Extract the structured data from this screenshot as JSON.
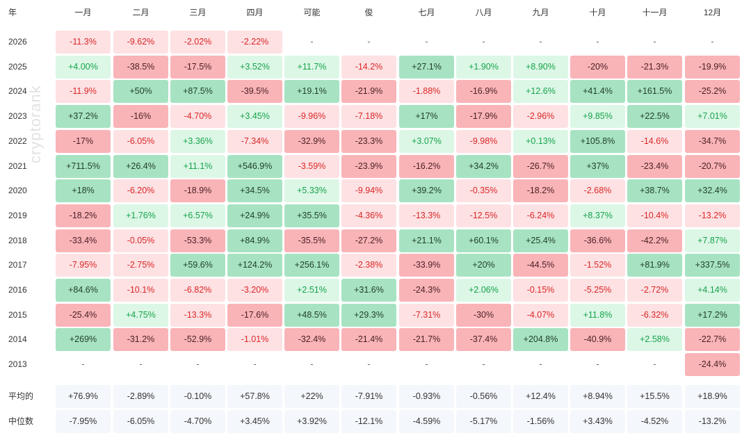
{
  "chart_data": {
    "type": "heatmap",
    "corner_label": "年",
    "months": [
      "一月",
      "二月",
      "三月",
      "四月",
      "可能",
      "俊",
      "七月",
      "八月",
      "九月",
      "十月",
      "十一月",
      "12月"
    ],
    "years": [
      "2026",
      "2025",
      "2024",
      "2023",
      "2022",
      "2021",
      "2020",
      "2019",
      "2018",
      "2017",
      "2016",
      "2015",
      "2014",
      "2013"
    ],
    "values": [
      [
        "-11.3%",
        "-9.62%",
        "-2.02%",
        "-2.22%",
        "-",
        "-",
        "-",
        "-",
        "-",
        "-",
        "-",
        "-"
      ],
      [
        "+4.00%",
        "-38.5%",
        "-17.5%",
        "+3.52%",
        "+11.7%",
        "-14.2%",
        "+27.1%",
        "+1.90%",
        "+8.90%",
        "-20%",
        "-21.3%",
        "-19.9%"
      ],
      [
        "-11.9%",
        "+50%",
        "+87.5%",
        "-39.5%",
        "+19.1%",
        "-21.9%",
        "-1.88%",
        "-16.9%",
        "+12.6%",
        "+41.4%",
        "+161.5%",
        "-25.2%"
      ],
      [
        "+37.2%",
        "-16%",
        "-4.70%",
        "+3.45%",
        "-9.96%",
        "-7.18%",
        "+17%",
        "-17.9%",
        "-2.96%",
        "+9.85%",
        "+22.5%",
        "+7.01%"
      ],
      [
        "-17%",
        "-6.05%",
        "+3.36%",
        "-7.34%",
        "-32.9%",
        "-23.3%",
        "+3.07%",
        "-9.98%",
        "+0.13%",
        "+105.8%",
        "-14.6%",
        "-34.7%"
      ],
      [
        "+711.5%",
        "+26.4%",
        "+11.1%",
        "+546.9%",
        "-3.59%",
        "-23.9%",
        "-16.2%",
        "+34.2%",
        "-26.7%",
        "+37%",
        "-23.4%",
        "-20.7%"
      ],
      [
        "+18%",
        "-6.20%",
        "-18.9%",
        "+34.5%",
        "+5.33%",
        "-9.94%",
        "+39.2%",
        "-0.35%",
        "-18.2%",
        "-2.68%",
        "+38.7%",
        "+32.4%"
      ],
      [
        "-18.2%",
        "+1.76%",
        "+6.57%",
        "+24.9%",
        "+35.5%",
        "-4.36%",
        "-13.3%",
        "-12.5%",
        "-6.24%",
        "+8.37%",
        "-10.4%",
        "-13.2%"
      ],
      [
        "-33.4%",
        "-0.05%",
        "-53.3%",
        "+84.9%",
        "-35.5%",
        "-27.2%",
        "+21.1%",
        "+60.1%",
        "+25.4%",
        "-36.6%",
        "-42.2%",
        "+7.87%"
      ],
      [
        "-7.95%",
        "-2.75%",
        "+59.6%",
        "+124.2%",
        "+256.1%",
        "-2.38%",
        "-33.9%",
        "+20%",
        "-44.5%",
        "-1.52%",
        "+81.9%",
        "+337.5%"
      ],
      [
        "+84.6%",
        "-10.1%",
        "-6.82%",
        "-3.20%",
        "+2.51%",
        "+31.6%",
        "-24.3%",
        "+2.06%",
        "-0.15%",
        "-5.25%",
        "-2.72%",
        "+4.14%"
      ],
      [
        "-25.4%",
        "+4.75%",
        "-13.3%",
        "-17.6%",
        "+48.5%",
        "+29.3%",
        "-7.31%",
        "-30%",
        "-4.07%",
        "+11.8%",
        "-6.32%",
        "+17.2%"
      ],
      [
        "+269%",
        "-31.2%",
        "-52.9%",
        "-1.01%",
        "-32.4%",
        "-21.4%",
        "-21.7%",
        "-37.4%",
        "+204.8%",
        "-40.9%",
        "+2.58%",
        "-22.7%"
      ],
      [
        "-",
        "-",
        "-",
        "-",
        "-",
        "-",
        "-",
        "-",
        "-",
        "-",
        "-",
        "-24.4%"
      ]
    ],
    "summary_rows": [
      {
        "label": "平均的",
        "values": [
          "+76.9%",
          "-2.89%",
          "-0.10%",
          "+57.8%",
          "+22%",
          "-7.91%",
          "-0.93%",
          "-0.56%",
          "+12.4%",
          "+8.94%",
          "+15.5%",
          "+18.9%"
        ]
      },
      {
        "label": "中位数",
        "values": [
          "-7.95%",
          "-6.05%",
          "-4.70%",
          "+3.45%",
          "+3.92%",
          "-12.1%",
          "-4.59%",
          "-5.17%",
          "-1.56%",
          "+3.43%",
          "-4.52%",
          "-13.2%"
        ]
      }
    ],
    "watermark": "cryptorank",
    "colors": {
      "pos_text": "#16a34a",
      "neg_text": "#dc2626",
      "pos_strong": "#a7e3c2",
      "pos_light": "#dcf7e6",
      "neg_strong": "#f9b4b8",
      "neg_light": "#fde1e3",
      "stat_bg": "#f4f7fb"
    }
  }
}
